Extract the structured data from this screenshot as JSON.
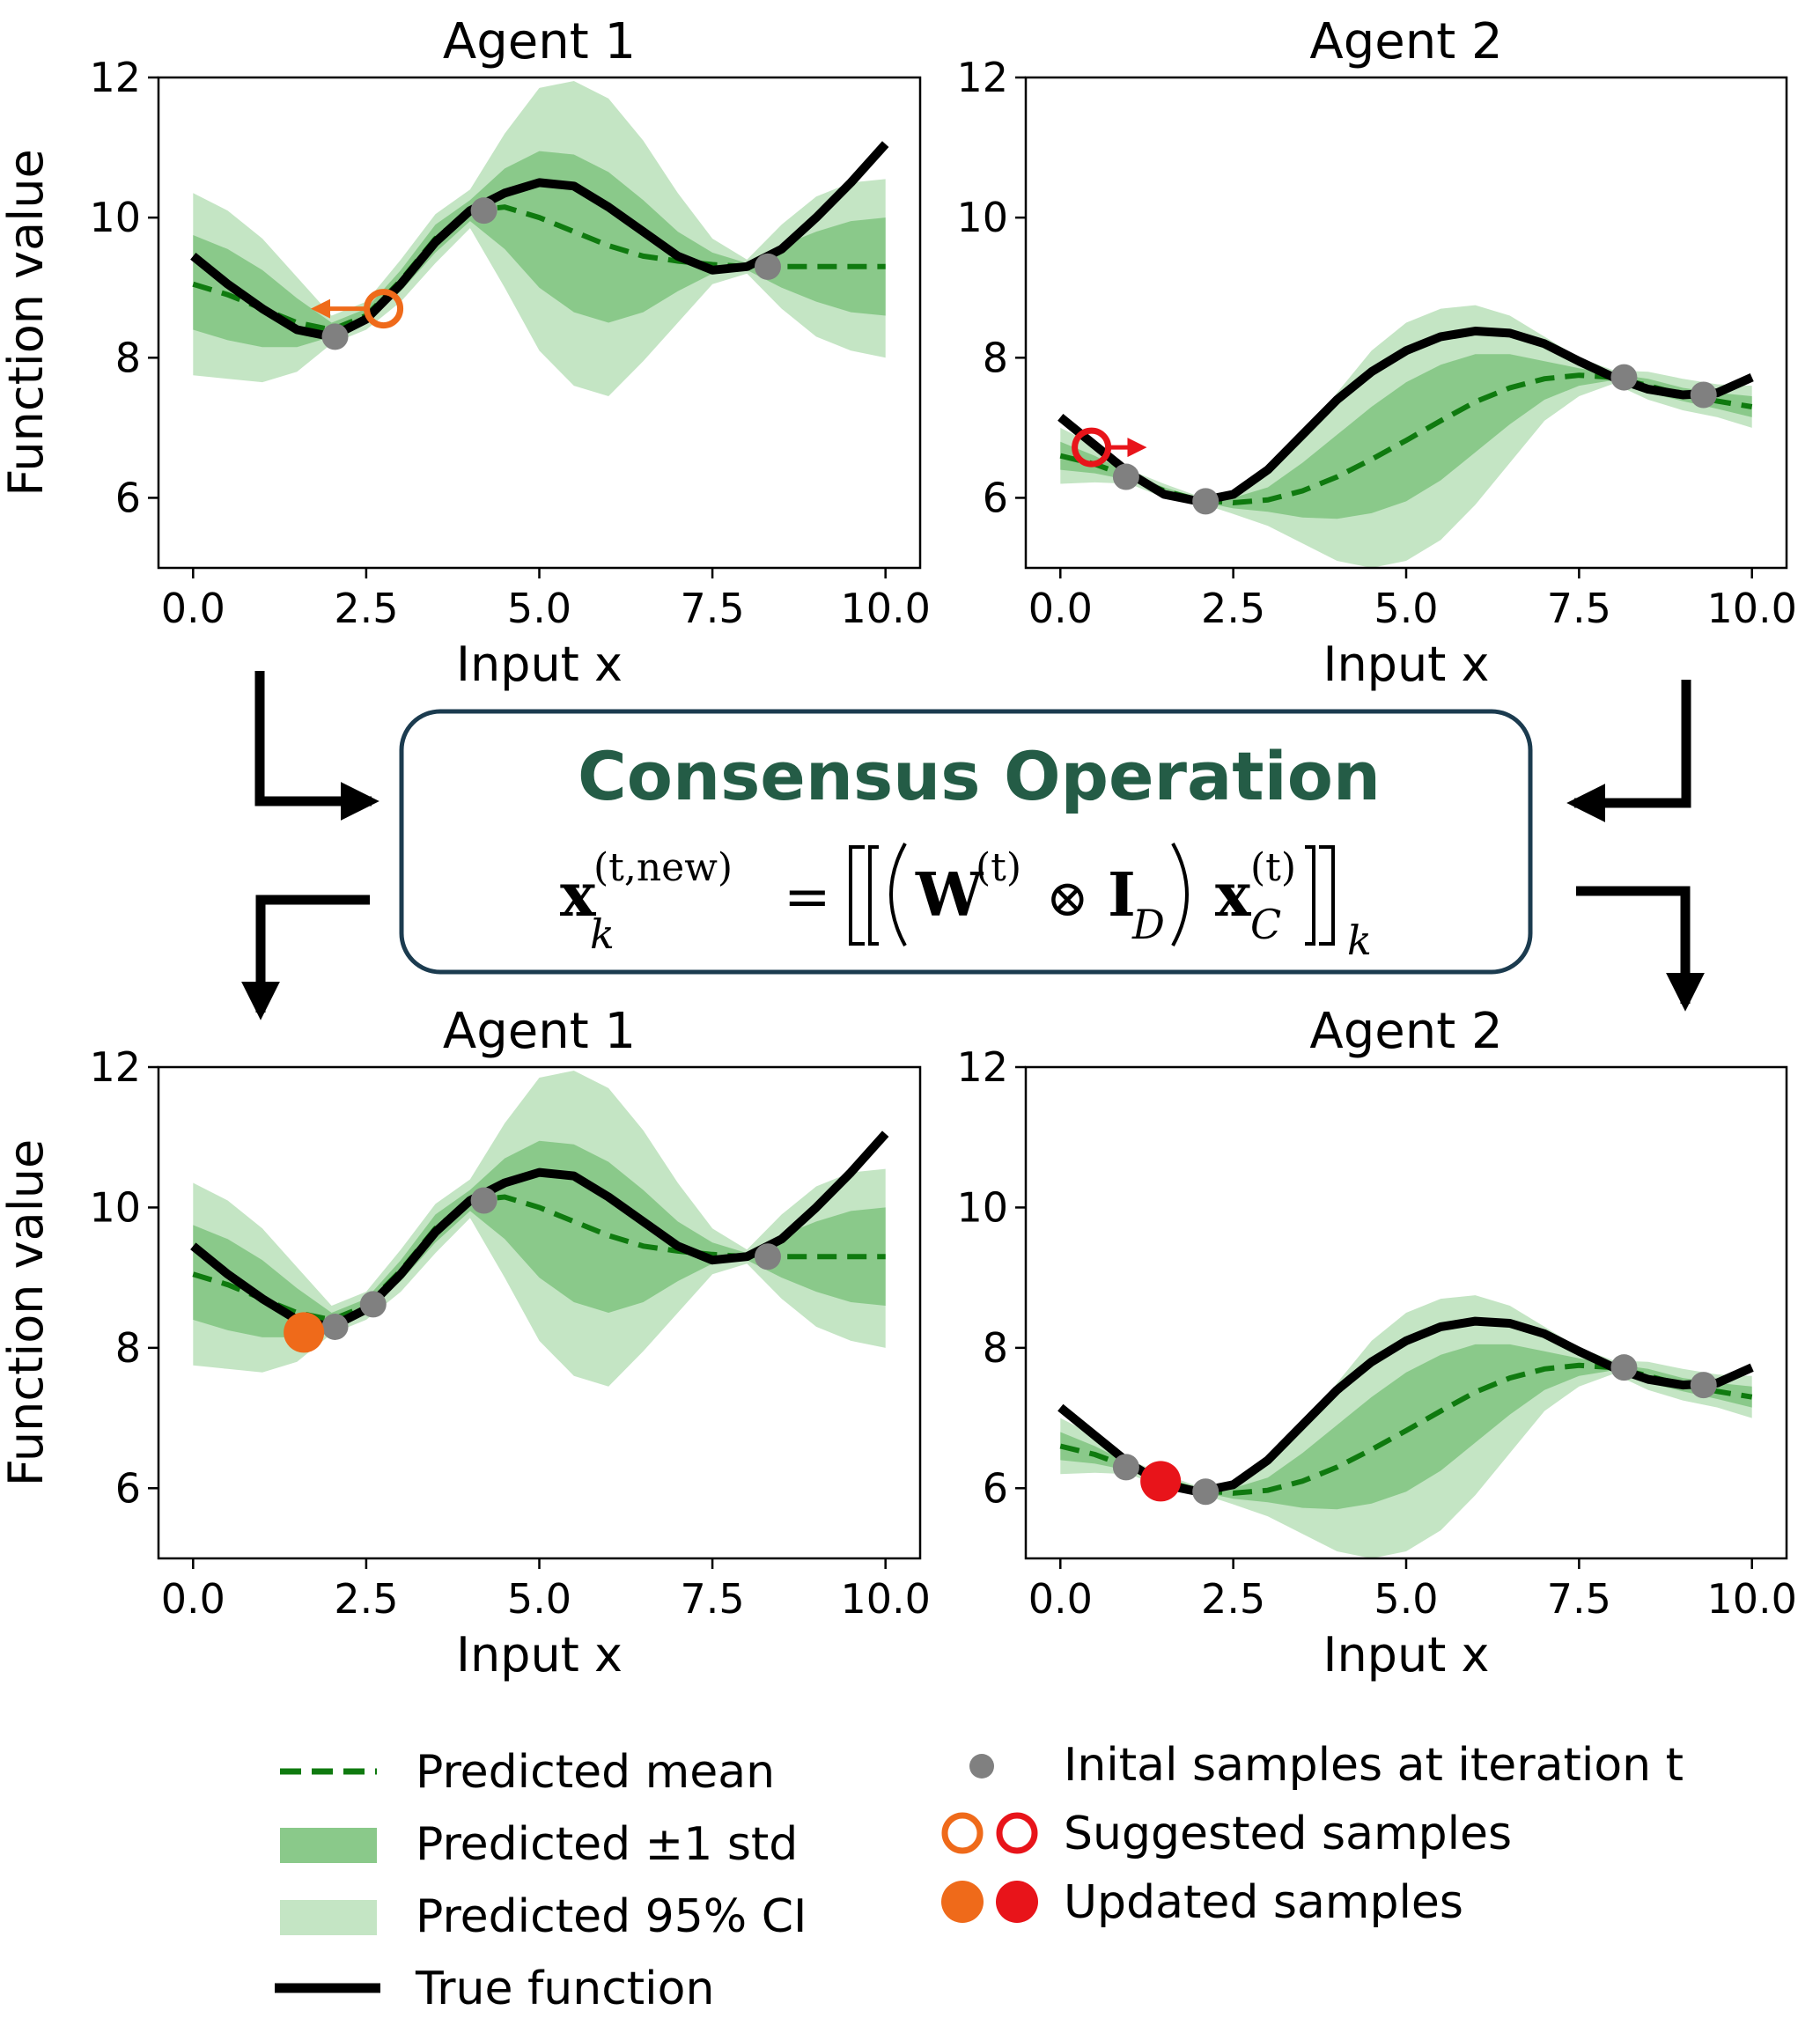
{
  "chart_data": [
    {
      "type": "line",
      "title": "Agent 1",
      "xlabel": "Input x",
      "ylabel": "Function value",
      "xlim": [
        -0.5,
        10.5
      ],
      "ylim": [
        5,
        12
      ],
      "xticks": [
        "0.0",
        "2.5",
        "5.0",
        "7.5",
        "10.0"
      ],
      "yticks": [
        "6",
        "8",
        "10",
        "12"
      ],
      "x": [
        0,
        0.5,
        1,
        1.5,
        2,
        2.5,
        3,
        3.5,
        4,
        4.5,
        5,
        5.5,
        6,
        6.5,
        7,
        7.5,
        8,
        8.5,
        9,
        9.5,
        10
      ],
      "series": [
        {
          "name": "True function",
          "values": [
            9.45,
            9.05,
            8.7,
            8.4,
            8.3,
            8.55,
            9.05,
            9.65,
            10.1,
            10.35,
            10.5,
            10.45,
            10.15,
            9.8,
            9.45,
            9.25,
            9.3,
            9.55,
            10.0,
            10.5,
            11.05
          ]
        },
        {
          "name": "Predicted mean",
          "values": [
            9.05,
            8.9,
            8.7,
            8.5,
            8.4,
            8.6,
            9.1,
            9.7,
            10.1,
            10.15,
            10.0,
            9.8,
            9.6,
            9.45,
            9.38,
            9.33,
            9.3,
            9.3,
            9.3,
            9.3,
            9.3
          ]
        },
        {
          "name": "Predicted ±1 std",
          "lower": [
            8.4,
            8.25,
            8.15,
            8.15,
            8.3,
            8.5,
            8.95,
            9.5,
            9.95,
            9.55,
            9.0,
            8.65,
            8.5,
            8.65,
            8.95,
            9.2,
            9.25,
            9.0,
            8.8,
            8.65,
            8.6
          ],
          "upper": [
            9.75,
            9.55,
            9.25,
            8.85,
            8.5,
            8.7,
            9.25,
            9.9,
            10.25,
            10.7,
            10.95,
            10.9,
            10.65,
            10.25,
            9.8,
            9.5,
            9.35,
            9.6,
            9.8,
            9.95,
            10.0
          ]
        },
        {
          "name": "Predicted 95% CI",
          "lower": [
            7.75,
            7.7,
            7.65,
            7.8,
            8.2,
            8.4,
            8.8,
            9.35,
            9.85,
            9.0,
            8.1,
            7.6,
            7.45,
            7.95,
            8.5,
            9.05,
            9.2,
            8.7,
            8.3,
            8.1,
            8.0
          ],
          "upper": [
            10.35,
            10.1,
            9.7,
            9.15,
            8.6,
            8.8,
            9.4,
            10.05,
            10.4,
            11.2,
            11.85,
            11.95,
            11.7,
            11.1,
            10.35,
            9.7,
            9.4,
            9.9,
            10.3,
            10.5,
            10.55
          ]
        }
      ],
      "initial_samples": [
        [
          2.05,
          8.3
        ],
        [
          4.2,
          10.1
        ],
        [
          8.3,
          9.3
        ]
      ],
      "suggested_sample": [
        2.75,
        8.7
      ],
      "suggested_arrow_to": [
        1.7,
        8.7
      ],
      "sample_color": "#ef6a1a"
    },
    {
      "type": "line",
      "title": "Agent 2",
      "xlabel": "Input x",
      "ylabel": "",
      "xlim": [
        -0.5,
        10.5
      ],
      "ylim": [
        5,
        12
      ],
      "xticks": [
        "0.0",
        "2.5",
        "5.0",
        "7.5",
        "10.0"
      ],
      "yticks": [
        "6",
        "8",
        "10",
        "12"
      ],
      "x": [
        0,
        0.5,
        1,
        1.5,
        2,
        2.5,
        3,
        3.5,
        4,
        4.5,
        5,
        5.5,
        6,
        6.5,
        7,
        7.5,
        8,
        8.5,
        9,
        9.5,
        10
      ],
      "series": [
        {
          "name": "True function",
          "values": [
            7.15,
            6.75,
            6.35,
            6.05,
            5.95,
            6.05,
            6.4,
            6.9,
            7.4,
            7.8,
            8.1,
            8.3,
            8.38,
            8.35,
            8.2,
            7.95,
            7.72,
            7.55,
            7.47,
            7.5,
            7.72
          ]
        },
        {
          "name": "Predicted mean",
          "values": [
            6.6,
            6.48,
            6.3,
            6.1,
            5.97,
            5.93,
            5.97,
            6.1,
            6.3,
            6.55,
            6.82,
            7.1,
            7.37,
            7.57,
            7.7,
            7.75,
            7.72,
            7.6,
            7.47,
            7.38,
            7.3
          ]
        },
        {
          "name": "Predicted ±1 std",
          "lower": [
            6.4,
            6.35,
            6.25,
            6.05,
            5.95,
            5.85,
            5.8,
            5.72,
            5.7,
            5.78,
            5.95,
            6.25,
            6.65,
            7.05,
            7.4,
            7.6,
            7.68,
            7.5,
            7.38,
            7.27,
            7.15
          ],
          "upper": [
            6.8,
            6.6,
            6.35,
            6.15,
            6.0,
            6.0,
            6.15,
            6.5,
            6.9,
            7.3,
            7.65,
            7.9,
            8.05,
            8.05,
            7.95,
            7.85,
            7.77,
            7.7,
            7.57,
            7.5,
            7.45
          ]
        },
        {
          "name": "Predicted 95% CI",
          "lower": [
            6.2,
            6.22,
            6.2,
            6.0,
            5.93,
            5.77,
            5.6,
            5.35,
            5.1,
            5.0,
            5.1,
            5.4,
            5.9,
            6.5,
            7.1,
            7.45,
            7.63,
            7.4,
            7.25,
            7.15,
            7.0
          ],
          "upper": [
            7.0,
            6.75,
            6.4,
            6.2,
            6.02,
            6.1,
            6.35,
            6.85,
            7.5,
            8.1,
            8.5,
            8.7,
            8.75,
            8.6,
            8.3,
            8.0,
            7.82,
            7.8,
            7.7,
            7.62,
            7.6
          ]
        }
      ],
      "initial_samples": [
        [
          0.95,
          6.3
        ],
        [
          2.1,
          5.95
        ],
        [
          8.15,
          7.72
        ],
        [
          9.3,
          7.47
        ]
      ],
      "suggested_sample": [
        0.45,
        6.72
      ],
      "suggested_arrow_to": [
        1.25,
        6.72
      ],
      "sample_color": "#e8141a"
    },
    {
      "type": "line",
      "title": "Agent 1",
      "xlabel": "Input x",
      "ylabel": "Function value",
      "xlim": [
        -0.5,
        10.5
      ],
      "ylim": [
        5,
        12
      ],
      "xticks": [
        "0.0",
        "2.5",
        "5.0",
        "7.5",
        "10.0"
      ],
      "yticks": [
        "6",
        "8",
        "10",
        "12"
      ],
      "x": [
        0,
        0.5,
        1,
        1.5,
        2,
        2.5,
        3,
        3.5,
        4,
        4.5,
        5,
        5.5,
        6,
        6.5,
        7,
        7.5,
        8,
        8.5,
        9,
        9.5,
        10
      ],
      "series": [
        {
          "name": "True function",
          "values": [
            9.45,
            9.05,
            8.7,
            8.4,
            8.3,
            8.55,
            9.05,
            9.65,
            10.1,
            10.35,
            10.5,
            10.45,
            10.15,
            9.8,
            9.45,
            9.25,
            9.3,
            9.55,
            10.0,
            10.5,
            11.05
          ]
        },
        {
          "name": "Predicted mean",
          "values": [
            9.05,
            8.9,
            8.7,
            8.5,
            8.4,
            8.6,
            9.1,
            9.7,
            10.1,
            10.15,
            10.0,
            9.8,
            9.6,
            9.45,
            9.38,
            9.33,
            9.3,
            9.3,
            9.3,
            9.3,
            9.3
          ]
        },
        {
          "name": "Predicted ±1 std",
          "lower": [
            8.4,
            8.25,
            8.15,
            8.15,
            8.3,
            8.5,
            8.95,
            9.5,
            9.95,
            9.55,
            9.0,
            8.65,
            8.5,
            8.65,
            8.95,
            9.2,
            9.25,
            9.0,
            8.8,
            8.65,
            8.6
          ],
          "upper": [
            9.75,
            9.55,
            9.25,
            8.85,
            8.5,
            8.7,
            9.25,
            9.9,
            10.25,
            10.7,
            10.95,
            10.9,
            10.65,
            10.25,
            9.8,
            9.5,
            9.35,
            9.6,
            9.8,
            9.95,
            10.0
          ]
        },
        {
          "name": "Predicted 95% CI",
          "lower": [
            7.75,
            7.7,
            7.65,
            7.8,
            8.2,
            8.4,
            8.8,
            9.35,
            9.85,
            9.0,
            8.1,
            7.6,
            7.45,
            7.95,
            8.5,
            9.05,
            9.2,
            8.7,
            8.3,
            8.1,
            8.0
          ],
          "upper": [
            10.35,
            10.1,
            9.7,
            9.15,
            8.6,
            8.8,
            9.4,
            10.05,
            10.4,
            11.2,
            11.85,
            11.95,
            11.7,
            11.1,
            10.35,
            9.7,
            9.4,
            9.9,
            10.3,
            10.5,
            10.55
          ]
        }
      ],
      "initial_samples": [
        [
          2.05,
          8.3
        ],
        [
          2.6,
          8.62
        ],
        [
          4.2,
          10.1
        ],
        [
          8.3,
          9.3
        ]
      ],
      "updated_sample": [
        1.6,
        8.22
      ],
      "sample_color": "#ef6a1a"
    },
    {
      "type": "line",
      "title": "Agent 2",
      "xlabel": "Input x",
      "ylabel": "",
      "xlim": [
        -0.5,
        10.5
      ],
      "ylim": [
        5,
        12
      ],
      "xticks": [
        "0.0",
        "2.5",
        "5.0",
        "7.5",
        "10.0"
      ],
      "yticks": [
        "6",
        "8",
        "10",
        "12"
      ],
      "x": [
        0,
        0.5,
        1,
        1.5,
        2,
        2.5,
        3,
        3.5,
        4,
        4.5,
        5,
        5.5,
        6,
        6.5,
        7,
        7.5,
        8,
        8.5,
        9,
        9.5,
        10
      ],
      "series": [
        {
          "name": "True function",
          "values": [
            7.15,
            6.75,
            6.35,
            6.05,
            5.95,
            6.05,
            6.4,
            6.9,
            7.4,
            7.8,
            8.1,
            8.3,
            8.38,
            8.35,
            8.2,
            7.95,
            7.72,
            7.55,
            7.47,
            7.5,
            7.72
          ]
        },
        {
          "name": "Predicted mean",
          "values": [
            6.6,
            6.48,
            6.3,
            6.1,
            5.97,
            5.93,
            5.97,
            6.1,
            6.3,
            6.55,
            6.82,
            7.1,
            7.37,
            7.57,
            7.7,
            7.75,
            7.72,
            7.6,
            7.47,
            7.38,
            7.3
          ]
        },
        {
          "name": "Predicted ±1 std",
          "lower": [
            6.4,
            6.35,
            6.25,
            6.05,
            5.95,
            5.85,
            5.8,
            5.72,
            5.7,
            5.78,
            5.95,
            6.25,
            6.65,
            7.05,
            7.4,
            7.6,
            7.68,
            7.5,
            7.38,
            7.27,
            7.15
          ],
          "upper": [
            6.8,
            6.6,
            6.35,
            6.15,
            6.0,
            6.0,
            6.15,
            6.5,
            6.9,
            7.3,
            7.65,
            7.9,
            8.05,
            8.05,
            7.95,
            7.85,
            7.77,
            7.7,
            7.57,
            7.5,
            7.45
          ]
        },
        {
          "name": "Predicted 95% CI",
          "lower": [
            6.2,
            6.22,
            6.2,
            6.0,
            5.93,
            5.77,
            5.6,
            5.35,
            5.1,
            5.0,
            5.1,
            5.4,
            5.9,
            6.5,
            7.1,
            7.45,
            7.63,
            7.4,
            7.25,
            7.15,
            7.0
          ],
          "upper": [
            7.0,
            6.75,
            6.4,
            6.2,
            6.02,
            6.1,
            6.35,
            6.85,
            7.5,
            8.1,
            8.5,
            8.7,
            8.75,
            8.6,
            8.3,
            8.0,
            7.82,
            7.8,
            7.7,
            7.62,
            7.6
          ]
        }
      ],
      "initial_samples": [
        [
          0.95,
          6.3
        ],
        [
          2.1,
          5.95
        ],
        [
          8.15,
          7.72
        ],
        [
          9.3,
          7.47
        ]
      ],
      "updated_sample": [
        1.45,
        6.1
      ],
      "sample_color": "#e8141a"
    }
  ],
  "consensus": {
    "title": "Consensus Operation",
    "equation": {
      "x": "x",
      "k": "k",
      "sup_new": "(t,new)",
      "equals": "=",
      "W": "W",
      "t_sup": "(t)",
      "otimes": "⊗",
      "I": "I",
      "D": "D",
      "C": "C"
    }
  },
  "legend": {
    "mean": "Predicted mean",
    "std": "Predicted ±1 std",
    "ci": "Predicted 95% CI",
    "true": "True function",
    "initial": "Inital samples at iteration t",
    "suggested": "Suggested samples",
    "updated": "Updated samples"
  },
  "colors": {
    "true": "#000000",
    "mean": "#0f7a0f",
    "std_fill": "#8ac98a",
    "ci_fill": "#c4e5c4",
    "sample": "#808080",
    "agent1": "#ef6a1a",
    "agent2": "#e8141a",
    "consensus_text": "#245c46",
    "consensus_border": "#1b3b4f"
  }
}
